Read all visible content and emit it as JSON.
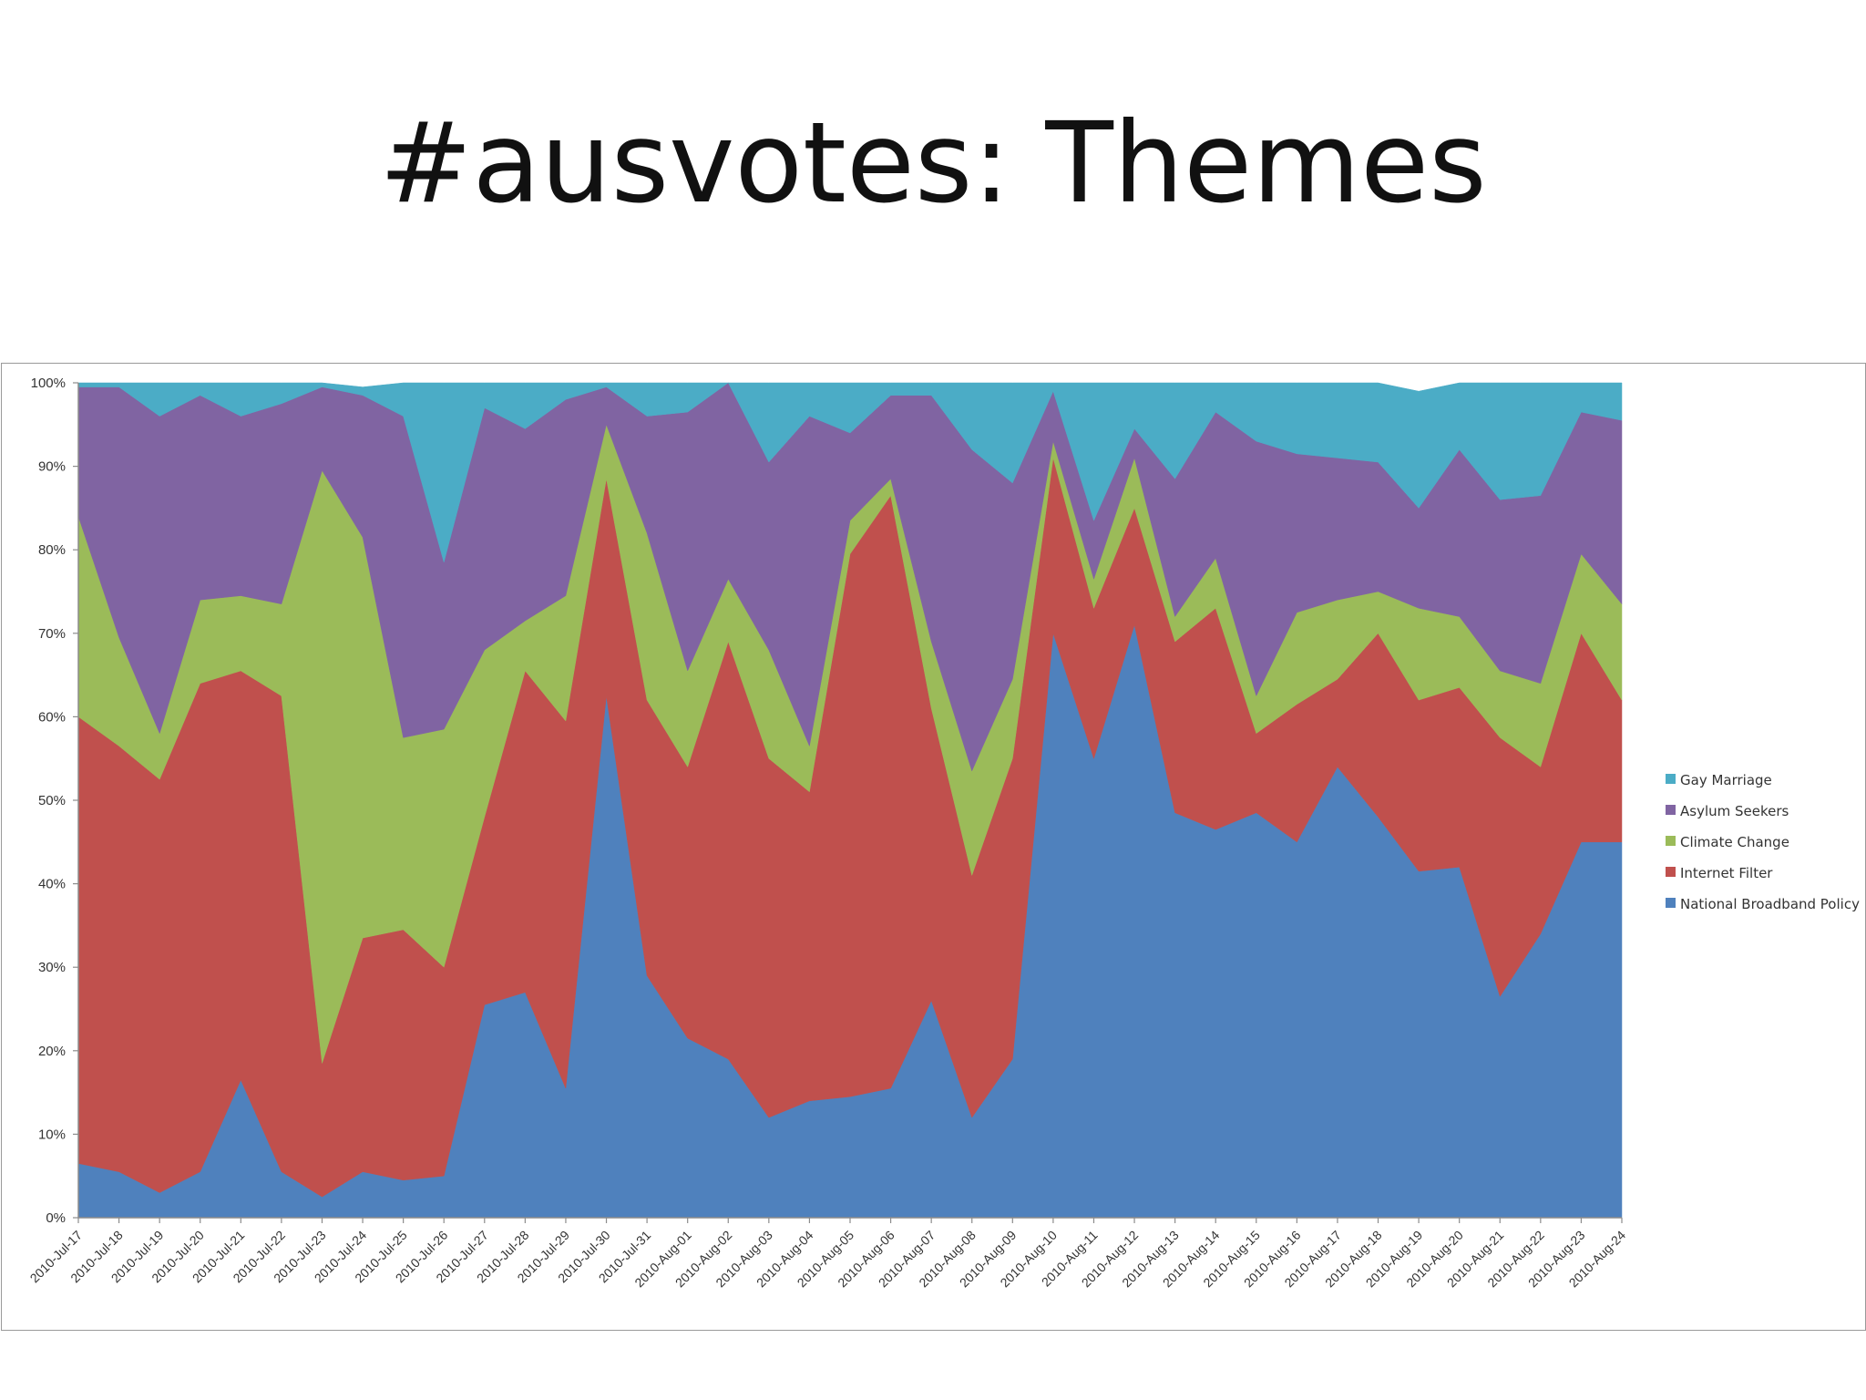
{
  "slide": {
    "title": "#ausvotes: Themes"
  },
  "chart_data": {
    "type": "area",
    "stacking": "percent",
    "categories": [
      "2010-Jul-17",
      "2010-Jul-18",
      "2010-Jul-19",
      "2010-Jul-20",
      "2010-Jul-21",
      "2010-Jul-22",
      "2010-Jul-23",
      "2010-Jul-24",
      "2010-Jul-25",
      "2010-Jul-26",
      "2010-Jul-27",
      "2010-Jul-28",
      "2010-Jul-29",
      "2010-Jul-30",
      "2010-Jul-31",
      "2010-Aug-01",
      "2010-Aug-02",
      "2010-Aug-03",
      "2010-Aug-04",
      "2010-Aug-05",
      "2010-Aug-06",
      "2010-Aug-07",
      "2010-Aug-08",
      "2010-Aug-09",
      "2010-Aug-10",
      "2010-Aug-11",
      "2010-Aug-12",
      "2010-Aug-13",
      "2010-Aug-14",
      "2010-Aug-15",
      "2010-Aug-16",
      "2010-Aug-17",
      "2010-Aug-18",
      "2010-Aug-19",
      "2010-Aug-20",
      "2010-Aug-21",
      "2010-Aug-22",
      "2010-Aug-23",
      "2010-Aug-24"
    ],
    "series": [
      {
        "name": "National Broadband Policy",
        "color": "#4f81bd",
        "values": [
          6.5,
          5.5,
          3,
          5.5,
          16.5,
          5.5,
          2.5,
          5.5,
          4.5,
          5,
          25.5,
          27,
          15.5,
          62.5,
          29,
          21.5,
          19,
          12,
          14,
          14.5,
          15.5,
          26,
          12,
          19,
          70,
          55,
          71,
          48.5,
          46.5,
          48.5,
          45,
          54,
          48,
          41.5,
          42,
          26.5,
          34,
          45,
          45
        ]
      },
      {
        "name": "Internet Filter",
        "color": "#c0504d",
        "values": [
          53.5,
          51,
          49.5,
          58.5,
          49,
          57,
          16,
          28,
          30,
          25,
          22.5,
          38.5,
          44,
          26,
          33,
          32.5,
          50,
          43,
          37,
          65,
          71,
          35,
          29,
          36,
          21,
          18,
          14,
          20.5,
          26.5,
          9.5,
          16.5,
          10.5,
          22,
          20.5,
          21.5,
          31,
          20,
          25,
          17
        ]
      },
      {
        "name": "Climate Change",
        "color": "#9bbb59",
        "values": [
          24,
          13,
          5.5,
          10,
          9,
          11,
          71,
          48,
          23,
          28.5,
          20,
          6,
          15,
          6.5,
          20,
          11.5,
          7.5,
          13,
          5.5,
          4,
          2,
          8,
          12.5,
          9.5,
          2,
          3.5,
          6,
          3,
          6,
          4.5,
          11,
          9.5,
          5,
          11,
          8.5,
          8,
          10,
          9.5,
          11.5
        ]
      },
      {
        "name": "Asylum Seekers",
        "color": "#8064a2",
        "values": [
          15.5,
          30,
          38,
          24.5,
          21.5,
          24,
          10,
          17,
          38.5,
          20,
          29,
          23,
          23.5,
          4.5,
          14,
          31,
          29,
          22.5,
          39.5,
          10.5,
          10,
          29.5,
          38.5,
          23.5,
          6,
          7,
          3.5,
          16.5,
          17.5,
          30.5,
          19,
          17,
          15.5,
          12,
          20,
          20.5,
          22.5,
          17,
          22
        ]
      },
      {
        "name": "Gay Marriage",
        "color": "#4bacc6",
        "values": [
          0.5,
          0.5,
          4,
          1.5,
          4,
          2.5,
          0.5,
          1,
          4,
          21.5,
          3,
          5.5,
          2,
          0.5,
          4,
          3.5,
          4.5,
          9.5,
          4,
          6,
          1.5,
          1.5,
          8,
          12,
          1,
          16.5,
          5.5,
          11.5,
          3.5,
          7,
          8.5,
          9,
          9.5,
          14,
          8,
          14,
          13.5,
          3.5,
          4.5
        ]
      }
    ],
    "y_ticks": [
      "0%",
      "10%",
      "20%",
      "30%",
      "40%",
      "50%",
      "60%",
      "70%",
      "80%",
      "90%",
      "100%"
    ],
    "ylim": [
      0,
      100
    ],
    "legend_order": [
      "Gay Marriage",
      "Asylum Seekers",
      "Climate Change",
      "Internet Filter",
      "National Broadband Policy"
    ],
    "legend_position": "right",
    "grid": false
  }
}
